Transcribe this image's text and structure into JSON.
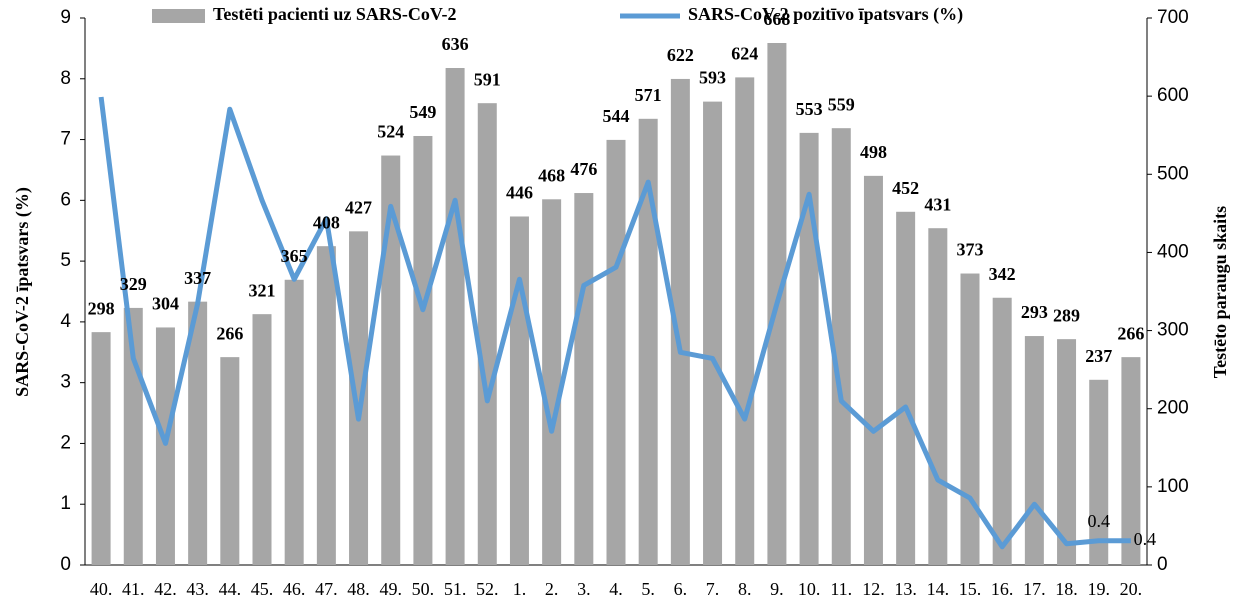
{
  "chart_data": {
    "type": "bar_line",
    "legend": "top",
    "grid": false,
    "y_label": "SARS-CoV-2 īpatsvars (%)",
    "y2_label": "Testēto paraugu skaits",
    "categories": [
      "40.",
      "41.",
      "42.",
      "43.",
      "44.",
      "45.",
      "46.",
      "47.",
      "48.",
      "49.",
      "50.",
      "51.",
      "52.",
      "1.",
      "2.",
      "3.",
      "4.",
      "5.",
      "6.",
      "7.",
      "8.",
      "9.",
      "10.",
      "11.",
      "12.",
      "13.",
      "14.",
      "15.",
      "16.",
      "17.",
      "18.",
      "19.",
      "20."
    ],
    "ylim": [
      0,
      9
    ],
    "yticks": [
      0,
      1,
      2,
      3,
      4,
      5,
      6,
      7,
      8,
      9
    ],
    "y2lim": [
      0,
      700
    ],
    "y2ticks": [
      0,
      100,
      200,
      300,
      400,
      500,
      600,
      700
    ],
    "series": [
      {
        "name": "Testēti pacienti uz SARS-CoV-2",
        "type": "bar",
        "axis": "y2",
        "color": "#a6a6a6",
        "values": [
          298,
          329,
          304,
          337,
          266,
          321,
          365,
          408,
          427,
          524,
          549,
          636,
          591,
          446,
          468,
          476,
          544,
          571,
          622,
          593,
          624,
          668,
          553,
          559,
          498,
          452,
          431,
          373,
          342,
          293,
          289,
          237,
          266
        ]
      },
      {
        "name": "SARS-CoV-2 pozitīvo īpatsvars (%)",
        "type": "line",
        "axis": "y",
        "color": "#5b9bd5",
        "values": [
          7.7,
          3.4,
          2.0,
          4.3,
          7.5,
          6.0,
          4.7,
          5.7,
          2.4,
          5.9,
          4.2,
          6.0,
          2.7,
          4.7,
          2.2,
          4.6,
          4.9,
          6.3,
          3.5,
          3.4,
          2.4,
          4.3,
          6.1,
          2.7,
          2.2,
          2.6,
          1.4,
          1.1,
          0.3,
          1.0,
          0.35,
          0.4,
          0.4
        ],
        "value_labels": [
          null,
          null,
          null,
          null,
          null,
          null,
          null,
          null,
          null,
          null,
          null,
          null,
          null,
          null,
          null,
          null,
          null,
          null,
          null,
          null,
          null,
          null,
          null,
          null,
          null,
          null,
          null,
          null,
          null,
          null,
          null,
          "0.4",
          "0.4"
        ]
      }
    ]
  }
}
